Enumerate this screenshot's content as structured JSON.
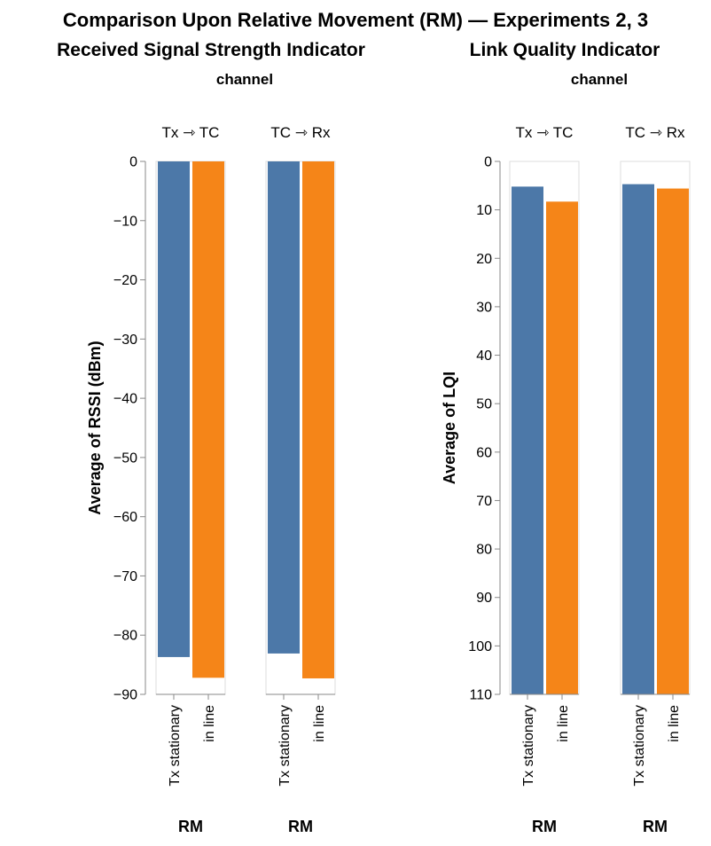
{
  "title": "Comparison Upon Relative Movement (RM) — Experiments 2, 3",
  "chart_data": [
    {
      "type": "bar",
      "subtitle": "Received Signal Strength Indicator",
      "column_header": "channel",
      "facets": [
        "Tx ⇾ TC",
        "TC ⇾ Rx"
      ],
      "categories": [
        "Tx stationary",
        "in line"
      ],
      "series": [
        {
          "facet": "Tx ⇾ TC",
          "values": [
            -83.7,
            -87.2
          ]
        },
        {
          "facet": "TC ⇾ Rx",
          "values": [
            -83.1,
            -87.3
          ]
        }
      ],
      "xlabel": "RM",
      "ylabel": "Average of RSSI (dBm)",
      "ylim": [
        -90,
        0
      ],
      "yticks": [
        "0",
        "−10",
        "−20",
        "−30",
        "−40",
        "−50",
        "−60",
        "−70",
        "−80",
        "−90"
      ],
      "colors": [
        "#4c78a8",
        "#f58518"
      ],
      "grid": false
    },
    {
      "type": "bar",
      "subtitle": "Link Quality Indicator",
      "column_header": "channel",
      "facets": [
        "Tx ⇾ TC",
        "TC ⇾ Rx"
      ],
      "categories": [
        "Tx stationary",
        "in line"
      ],
      "series": [
        {
          "facet": "Tx ⇾ TC",
          "values": [
            104.8,
            101.7
          ]
        },
        {
          "facet": "TC ⇾ Rx",
          "values": [
            105.3,
            104.4
          ]
        }
      ],
      "xlabel": "RM",
      "ylabel": "Average of LQI",
      "ylim": [
        0,
        110
      ],
      "yticks": [
        "0",
        "10",
        "20",
        "30",
        "40",
        "50",
        "60",
        "70",
        "80",
        "90",
        "100",
        "110"
      ],
      "colors": [
        "#4c78a8",
        "#f58518"
      ],
      "grid": false
    }
  ]
}
